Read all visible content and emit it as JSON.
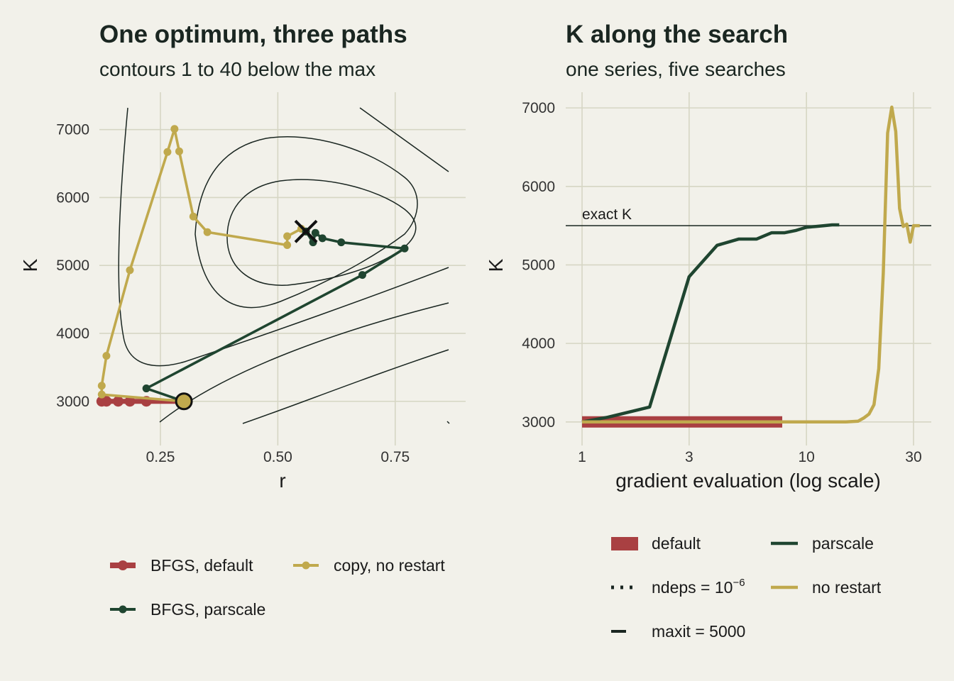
{
  "colors": {
    "background": "#f2f1ea",
    "grid": "#d6d6c4",
    "default": "#a94042",
    "parscale": "#1f4530",
    "no_restart": "#c0a94d",
    "ink": "#1a2621"
  },
  "chart_data": [
    {
      "type": "line",
      "title": "One optimum, three paths",
      "subtitle": "contours 1 to 40 below the max",
      "xlabel": "r",
      "ylabel": "K",
      "xlim": [
        0.12,
        0.9
      ],
      "ylim": [
        2350,
        7550
      ],
      "x_ticks": [
        0.25,
        0.5,
        0.75
      ],
      "x_tick_labels": [
        "0.25",
        "0.50",
        "0.75"
      ],
      "y_ticks": [
        3000,
        4000,
        5000,
        6000,
        7000
      ],
      "y_tick_labels": [
        "3000",
        "4000",
        "5000",
        "6000",
        "7000"
      ],
      "grid": true,
      "legend_position": "bottom",
      "optimum": {
        "x": 0.56,
        "y": 5500,
        "marker": "cross"
      },
      "start": {
        "x": 0.3,
        "y": 3000,
        "marker": "circle"
      },
      "series": [
        {
          "name": "BFGS, default",
          "color": "#a94042",
          "x": [
            0.3,
            0.22,
            0.185,
            0.16,
            0.135,
            0.125
          ],
          "y": [
            3000,
            3000,
            3000,
            3000,
            3000,
            3000
          ]
        },
        {
          "name": "copy, no restart",
          "color": "#c0a94d",
          "x": [
            0.3,
            0.125,
            0.125,
            0.135,
            0.185,
            0.265,
            0.28,
            0.29,
            0.32,
            0.35,
            0.52,
            0.52,
            0.55,
            0.56
          ],
          "y": [
            3000,
            3100,
            3230,
            3670,
            4930,
            6670,
            7010,
            6680,
            5720,
            5490,
            5300,
            5430,
            5540,
            5500
          ]
        },
        {
          "name": "BFGS, parscale",
          "color": "#1f4530",
          "x": [
            0.3,
            0.22,
            0.68,
            0.77,
            0.635,
            0.595,
            0.58,
            0.575,
            0.56
          ],
          "y": [
            3000,
            3190,
            4860,
            5250,
            5340,
            5400,
            5480,
            5340,
            5500
          ]
        }
      ]
    },
    {
      "type": "line",
      "title": "K along the search",
      "subtitle": "one series, five searches",
      "xlabel": "gradient evaluation (log scale)",
      "ylabel": "K",
      "x_scale": "log",
      "xlim": [
        1,
        36
      ],
      "ylim": [
        2700,
        7200
      ],
      "x_ticks": [
        1,
        3,
        10,
        30
      ],
      "x_tick_labels": [
        "1",
        "3",
        "10",
        "30"
      ],
      "y_ticks": [
        3000,
        4000,
        5000,
        6000,
        7000
      ],
      "y_tick_labels": [
        "3000",
        "4000",
        "5000",
        "6000",
        "7000"
      ],
      "grid": true,
      "legend_position": "bottom",
      "reference_line": {
        "y": 5500,
        "label": "exact K"
      },
      "series": [
        {
          "name": "default",
          "color": "#a94042",
          "x": [
            1,
            7.8
          ],
          "y": [
            3000,
            3000
          ]
        },
        {
          "name": "ndeps = 10",
          "name_sup": "−6",
          "color": "#1a2621",
          "x": [],
          "y": []
        },
        {
          "name": "maxit = 5000",
          "color": "#1a2621",
          "x": [],
          "y": []
        },
        {
          "name": "parscale",
          "color": "#1f4530",
          "x": [
            1,
            1.3,
            2,
            3,
            4,
            5,
            6,
            7,
            8,
            9,
            10,
            11,
            12,
            13,
            14
          ],
          "y": [
            3000,
            3060,
            3190,
            4850,
            5250,
            5330,
            5330,
            5410,
            5410,
            5440,
            5480,
            5490,
            5500,
            5510,
            5510
          ]
        },
        {
          "name": "no restart",
          "color": "#c0a94d",
          "x": [
            1,
            5,
            10,
            15,
            17,
            18,
            19,
            20,
            21,
            22,
            23,
            24,
            25,
            26,
            27,
            28,
            29,
            30,
            32
          ],
          "y": [
            3000,
            3000,
            3000,
            3000,
            3010,
            3050,
            3100,
            3220,
            3680,
            4900,
            6680,
            7010,
            6700,
            5720,
            5490,
            5520,
            5290,
            5500,
            5500
          ]
        }
      ]
    }
  ]
}
